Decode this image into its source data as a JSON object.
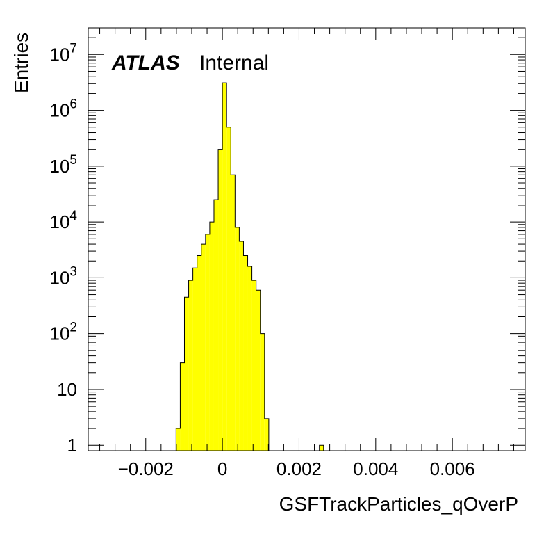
{
  "chart_data": {
    "type": "bar",
    "subtype": "histogram",
    "xlabel": "GSFTrackParticles_qOverP",
    "ylabel": "Entries",
    "yscale": "log",
    "xlim": [
      -0.0035,
      0.0079
    ],
    "ylim": [
      0.8,
      30000000
    ],
    "x_ticks": [
      {
        "value": -0.002,
        "label": "−0.002"
      },
      {
        "value": 0,
        "label": "0"
      },
      {
        "value": 0.002,
        "label": "0.002"
      },
      {
        "value": 0.004,
        "label": "0.004"
      },
      {
        "value": 0.006,
        "label": "0.006"
      }
    ],
    "y_ticks": [
      {
        "value": 1,
        "base": "1",
        "exp": ""
      },
      {
        "value": 10,
        "base": "10",
        "exp": ""
      },
      {
        "value": 100,
        "base": "10",
        "exp": "2"
      },
      {
        "value": 1000,
        "base": "10",
        "exp": "3"
      },
      {
        "value": 10000,
        "base": "10",
        "exp": "4"
      },
      {
        "value": 100000,
        "base": "10",
        "exp": "5"
      },
      {
        "value": 1000000,
        "base": "10",
        "exp": "6"
      },
      {
        "value": 10000000,
        "base": "10",
        "exp": "7"
      }
    ],
    "fill_color": "#ffff00",
    "line_color": "#000000",
    "bin_width": 0.00011,
    "bins": [
      {
        "x0": -0.00121,
        "x1": -0.0011,
        "value": 2
      },
      {
        "x0": -0.0011,
        "x1": -0.00099,
        "value": 30
      },
      {
        "x0": -0.00099,
        "x1": -0.00088,
        "value": 450
      },
      {
        "x0": -0.00088,
        "x1": -0.00077,
        "value": 900
      },
      {
        "x0": -0.00077,
        "x1": -0.00066,
        "value": 1500
      },
      {
        "x0": -0.00066,
        "x1": -0.00055,
        "value": 2500
      },
      {
        "x0": -0.00055,
        "x1": -0.00044,
        "value": 4000
      },
      {
        "x0": -0.00044,
        "x1": -0.00033,
        "value": 6000
      },
      {
        "x0": -0.00033,
        "x1": -0.00022,
        "value": 10000
      },
      {
        "x0": -0.00022,
        "x1": -0.00011,
        "value": 25000
      },
      {
        "x0": -0.00011,
        "x1": 0.0,
        "value": 200000
      },
      {
        "x0": 0.0,
        "x1": 0.00011,
        "value": 3100000
      },
      {
        "x0": 0.00011,
        "x1": 0.00022,
        "value": 500000
      },
      {
        "x0": 0.00022,
        "x1": 0.00033,
        "value": 70000
      },
      {
        "x0": 0.00033,
        "x1": 0.00044,
        "value": 8000
      },
      {
        "x0": 0.00044,
        "x1": 0.00055,
        "value": 4500
      },
      {
        "x0": 0.00055,
        "x1": 0.00066,
        "value": 2500
      },
      {
        "x0": 0.00066,
        "x1": 0.00077,
        "value": 1600
      },
      {
        "x0": 0.00077,
        "x1": 0.00088,
        "value": 900
      },
      {
        "x0": 0.00088,
        "x1": 0.00099,
        "value": 600
      },
      {
        "x0": 0.00099,
        "x1": 0.0011,
        "value": 100
      },
      {
        "x0": 0.0011,
        "x1": 0.00121,
        "value": 3
      },
      {
        "x0": 0.00253,
        "x1": 0.00264,
        "value": 1
      }
    ]
  },
  "labels": {
    "experiment": "ATLAS",
    "status": "Internal"
  }
}
